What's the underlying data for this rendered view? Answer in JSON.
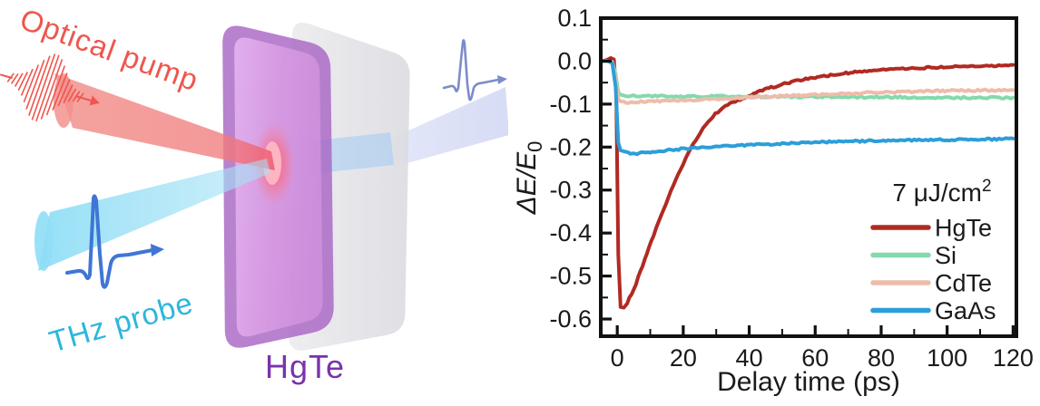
{
  "figure": {
    "diagram": {
      "pump_label": "Optical pump",
      "probe_label": "THz probe",
      "sample_label": "HgTe",
      "pump_text_color": "#ee564e",
      "probe_text_color": "#2cb6dc",
      "sample_label_color": "#7a33ab",
      "pump_beam_color": "#f08a84",
      "probe_beam_color": "#8fdef6",
      "transmitted_beam_color": "#d9def5",
      "thz_waveform_color": "#3f76d6",
      "transmitted_waveform_color": "#7b8ccb",
      "film_color": "#a866c4",
      "film_face_color": "#d79ae2",
      "substrate_color": "#e4e4e8"
    }
  },
  "chart_data": {
    "type": "line",
    "title": "",
    "xlabel": "Delay time (ps)",
    "ylabel": {
      "main": "ΔE/E",
      "sub": "0"
    },
    "annotation": {
      "text": "7 μJ/cm",
      "sup": "2"
    },
    "xlim": [
      -5,
      121
    ],
    "ylim": [
      -0.64,
      0.1
    ],
    "x_major_ticks": [
      0,
      20,
      40,
      60,
      80,
      100,
      120
    ],
    "x_minor_ticks": [
      10,
      30,
      50,
      70,
      90,
      110
    ],
    "y_major_ticks": [
      0.1,
      0.0,
      -0.1,
      -0.2,
      -0.3,
      -0.4,
      -0.5,
      -0.6
    ],
    "y_minor_ticks": [
      0.05,
      -0.05,
      -0.15,
      -0.25,
      -0.35,
      -0.45,
      -0.55
    ],
    "grid": false,
    "legend_position": "lower-right",
    "axis_color": "#111111",
    "series": [
      {
        "name": "HgTe",
        "color": "#b12a22",
        "x": [
          -5,
          -4,
          -3,
          -2,
          -1,
          -0.3,
          0.3,
          1,
          2,
          3,
          5,
          7,
          9,
          11,
          14,
          17,
          20,
          23,
          26,
          29,
          32,
          35,
          38,
          42,
          46,
          50,
          55,
          60,
          66,
          72,
          80,
          88,
          96,
          104,
          112,
          120
        ],
        "y": [
          0,
          0.001,
          0.003,
          0.007,
          0.004,
          -0.08,
          -0.45,
          -0.572,
          -0.575,
          -0.562,
          -0.532,
          -0.49,
          -0.448,
          -0.405,
          -0.345,
          -0.288,
          -0.238,
          -0.192,
          -0.156,
          -0.128,
          -0.108,
          -0.096,
          -0.087,
          -0.074,
          -0.063,
          -0.054,
          -0.045,
          -0.038,
          -0.031,
          -0.026,
          -0.021,
          -0.018,
          -0.015,
          -0.013,
          -0.012,
          -0.01
        ]
      },
      {
        "name": "Si",
        "color": "#84d9ad",
        "x": [
          -5,
          -3,
          -1.5,
          -0.5,
          0.3,
          1,
          2,
          5,
          10,
          20,
          30,
          40,
          50,
          60,
          70,
          80,
          90,
          100,
          110,
          120
        ],
        "y": [
          0,
          0,
          -0.002,
          -0.03,
          -0.072,
          -0.078,
          -0.08,
          -0.081,
          -0.081,
          -0.082,
          -0.082,
          -0.083,
          -0.083,
          -0.083,
          -0.084,
          -0.084,
          -0.084,
          -0.085,
          -0.085,
          -0.085
        ]
      },
      {
        "name": "CdTe",
        "color": "#eebcaa",
        "x": [
          -5,
          -3,
          -1.5,
          -0.5,
          0.3,
          1,
          2,
          5,
          10,
          20,
          30,
          40,
          50,
          60,
          70,
          80,
          90,
          100,
          110,
          120
        ],
        "y": [
          0,
          0,
          -0.003,
          -0.04,
          -0.088,
          -0.094,
          -0.096,
          -0.095,
          -0.094,
          -0.091,
          -0.088,
          -0.085,
          -0.081,
          -0.078,
          -0.075,
          -0.073,
          -0.071,
          -0.069,
          -0.068,
          -0.067
        ]
      },
      {
        "name": "GaAs",
        "color": "#2c9ed9",
        "x": [
          -5,
          -3,
          -1.5,
          -0.5,
          0.3,
          1,
          2,
          4,
          6,
          10,
          15,
          20,
          30,
          40,
          50,
          60,
          70,
          80,
          90,
          100,
          110,
          120
        ],
        "y": [
          0,
          0,
          -0.005,
          -0.06,
          -0.19,
          -0.208,
          -0.212,
          -0.215,
          -0.215,
          -0.212,
          -0.208,
          -0.204,
          -0.199,
          -0.195,
          -0.192,
          -0.189,
          -0.187,
          -0.185,
          -0.184,
          -0.183,
          -0.182,
          -0.181
        ]
      }
    ]
  }
}
